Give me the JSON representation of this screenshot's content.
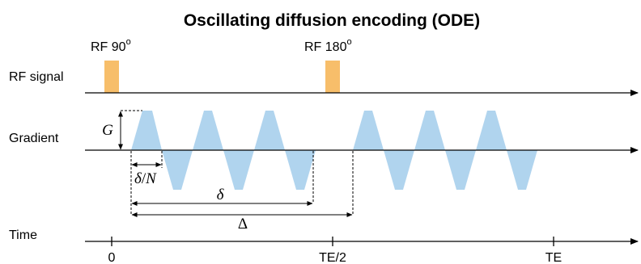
{
  "title": "Oscillating diffusion encoding (ODE)",
  "rows": {
    "rf": "RF signal",
    "gradient": "Gradient",
    "time": "Time"
  },
  "pulses": [
    {
      "label": "RF 90",
      "superscript": "o"
    },
    {
      "label": "RF 180",
      "superscript": "o"
    }
  ],
  "annotations": {
    "G": "G",
    "delta_over_N_delta": "δ",
    "delta_over_N_rest": "/N",
    "delta": "δ",
    "Delta": "Δ"
  },
  "time_ticks": [
    "0",
    "TE/2",
    "TE"
  ],
  "colors": {
    "rf_pulse": "#F7BE6A",
    "gradient_lobe": "#B0D4EE",
    "line": "#000000"
  }
}
